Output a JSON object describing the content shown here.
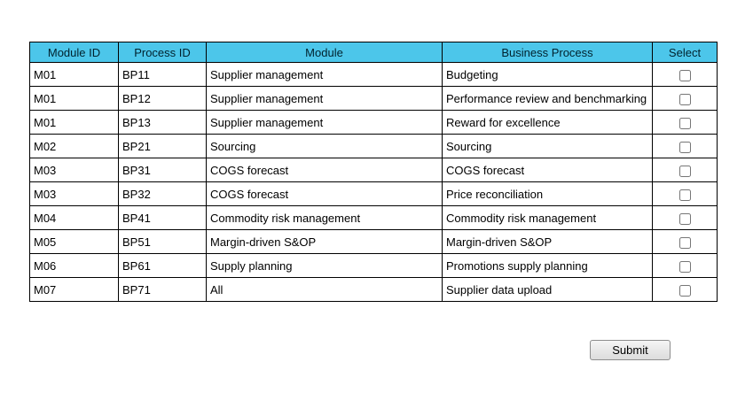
{
  "colors": {
    "header_bg": "#4cc6ea",
    "table_border": "#000000"
  },
  "table": {
    "headers": [
      "Module ID",
      "Process ID",
      "Module",
      "Business Process",
      "Select"
    ],
    "rows": [
      {
        "module_id": "M01",
        "process_id": "BP11",
        "module": "Supplier management",
        "business_process": "Budgeting",
        "selected": false
      },
      {
        "module_id": "M01",
        "process_id": "BP12",
        "module": "Supplier management",
        "business_process": "Performance review and benchmarking",
        "selected": false
      },
      {
        "module_id": "M01",
        "process_id": "BP13",
        "module": "Supplier management",
        "business_process": "Reward for excellence",
        "selected": false
      },
      {
        "module_id": "M02",
        "process_id": "BP21",
        "module": "Sourcing",
        "business_process": "Sourcing",
        "selected": false
      },
      {
        "module_id": "M03",
        "process_id": "BP31",
        "module": "COGS forecast",
        "business_process": "COGS forecast",
        "selected": false
      },
      {
        "module_id": "M03",
        "process_id": "BP32",
        "module": "COGS forecast",
        "business_process": "Price reconciliation",
        "selected": false
      },
      {
        "module_id": "M04",
        "process_id": "BP41",
        "module": "Commodity risk management",
        "business_process": "Commodity risk management",
        "selected": false
      },
      {
        "module_id": "M05",
        "process_id": "BP51",
        "module": "Margin-driven S&OP",
        "business_process": "Margin-driven S&OP",
        "selected": false
      },
      {
        "module_id": "M06",
        "process_id": "BP61",
        "module": "Supply planning",
        "business_process": "Promotions supply planning",
        "selected": false
      },
      {
        "module_id": "M07",
        "process_id": "BP71",
        "module": "All",
        "business_process": "Supplier data upload",
        "selected": false
      }
    ]
  },
  "submit": {
    "label": "Submit"
  }
}
